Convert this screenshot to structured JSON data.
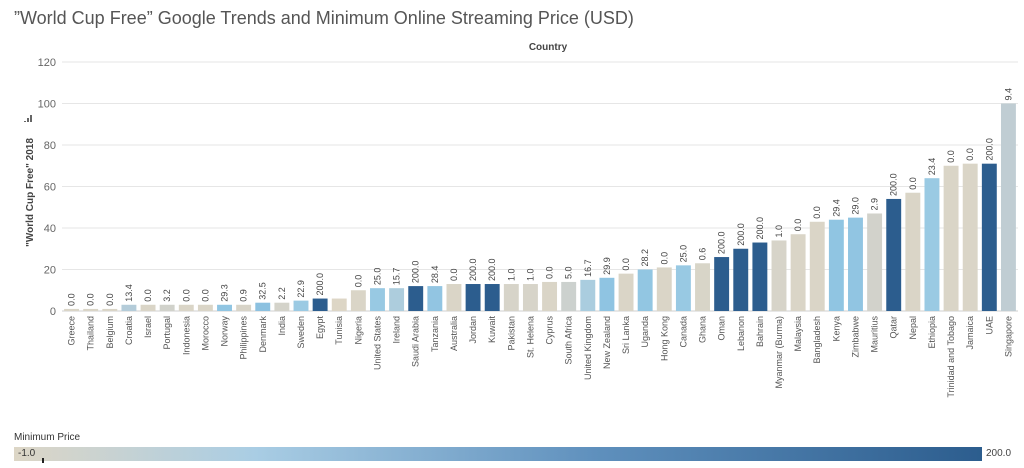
{
  "title": "”World Cup Free” Google Trends and Minimum Online Streaming Price (USD)",
  "chart_data": {
    "type": "bar",
    "x_header": "Country",
    "ylabel": "\"World Cup Free\" 2018",
    "ylim": [
      0,
      120
    ],
    "yticks": [
      0,
      20,
      40,
      60,
      80,
      100,
      120
    ],
    "grid": true,
    "categories": [
      "Greece",
      "Thailand",
      "Belgium",
      "Croatia",
      "Israel",
      "Portugal",
      "Indonesia",
      "Morocco",
      "Norway",
      "Philippines",
      "Denmark",
      "India",
      "Sweden",
      "Egypt",
      "Tunisia",
      "Nigeria",
      "United States",
      "Ireland",
      "Saudi Arabia",
      "Tanzania",
      "Australia",
      "Jordan",
      "Kuwait",
      "Pakistan",
      "St. Helena",
      "Cyprus",
      "South Africa",
      "United Kingdom",
      "New Zealand",
      "Sri Lanka",
      "Uganda",
      "Hong Kong",
      "Canada",
      "Ghana",
      "Oman",
      "Lebanon",
      "Bahrain",
      "Myanmar (Burma)",
      "Malaysia",
      "Bangladesh",
      "Kenya",
      "Zimbabwe",
      "Mauritius",
      "Qatar",
      "Nepal",
      "Ethiopia",
      "Trinidad and Tobago",
      "Jamaica",
      "UAE",
      "Singapore"
    ],
    "values": [
      1,
      1,
      1,
      3,
      3,
      3,
      3,
      3,
      3,
      3,
      4,
      4,
      5,
      6,
      6,
      10,
      11,
      11,
      12,
      12,
      13,
      13,
      13,
      13,
      13,
      14,
      14,
      15,
      16,
      18,
      20,
      21,
      22,
      23,
      26,
      30,
      33,
      34,
      37,
      43,
      44,
      45,
      47,
      54,
      57,
      64,
      70,
      71,
      71,
      100
    ],
    "bar_labels": [
      "0.0",
      "0.0",
      "0.0",
      "13.4",
      "0.0",
      "3.2",
      "0.0",
      "0.0",
      "29.3",
      "0.9",
      "32.5",
      "2.2",
      "22.9",
      "200.0",
      "",
      "0.0",
      "25.0",
      "15.7",
      "200.0",
      "28.4",
      "0.0",
      "200.0",
      "200.0",
      "1.0",
      "1.0",
      "0.0",
      "5.0",
      "16.7",
      "29.9",
      "0.0",
      "28.2",
      "0.0",
      "25.0",
      "0.6",
      "200.0",
      "200.0",
      "200.0",
      "1.0",
      "0.0",
      "0.0",
      "29.4",
      "29.0",
      "2.9",
      "200.0",
      "0.0",
      "23.4",
      "0.0",
      "0.0",
      "200.0",
      "9.4"
    ],
    "min_price": [
      0.0,
      0.0,
      0.0,
      13.4,
      0.0,
      3.2,
      0.0,
      0.0,
      29.3,
      0.9,
      32.5,
      2.2,
      22.9,
      200.0,
      -1.0,
      0.0,
      25.0,
      15.7,
      200.0,
      28.4,
      0.0,
      200.0,
      200.0,
      1.0,
      1.0,
      0.0,
      5.0,
      16.7,
      29.9,
      0.0,
      28.2,
      0.0,
      25.0,
      0.6,
      200.0,
      200.0,
      200.0,
      1.0,
      0.0,
      0.0,
      29.4,
      29.0,
      2.9,
      200.0,
      0.0,
      23.4,
      0.0,
      0.0,
      200.0,
      9.4
    ],
    "color_legend": {
      "title": "Minimum Price",
      "min_label": "-1.0",
      "max_label": "200.0",
      "colors": [
        "#ddd6c6",
        "#a9cde4",
        "#5f90bd",
        "#2c5d8e"
      ]
    }
  }
}
